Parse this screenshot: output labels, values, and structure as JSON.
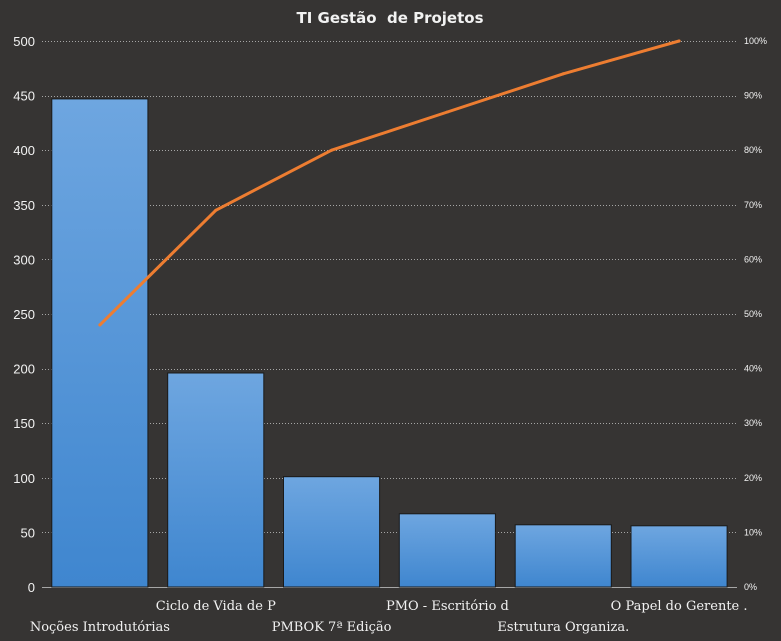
{
  "chart_data": {
    "type": "bar",
    "title": "TI Gestão  de Projetos",
    "categories": [
      "Noções Introdutórias",
      "Ciclo de Vida de P",
      "PMBOK 7ª Edição",
      "PMO - Escritório d",
      "Estrutura Organiza.",
      "O Papel do Gerente ."
    ],
    "series": [
      {
        "type": "bar",
        "axis": "left",
        "values": [
          447,
          196,
          101,
          67,
          57,
          56
        ]
      },
      {
        "type": "line",
        "axis": "right",
        "values": [
          48,
          69,
          80,
          87,
          94,
          100
        ]
      }
    ],
    "y_ticks": [
      "0",
      "50",
      "100",
      "150",
      "200",
      "250",
      "300",
      "350",
      "400",
      "450",
      "500"
    ],
    "y2_ticks": [
      "0%",
      "10%",
      "20%",
      "30%",
      "40%",
      "50%",
      "60%",
      "70%",
      "80%",
      "90%",
      "100%"
    ],
    "ylim": [
      0,
      500
    ],
    "y2lim": [
      0,
      100
    ],
    "grid": true,
    "legend": "none",
    "colors": {
      "background": "#363433",
      "bar_top": "#6ea6e0",
      "bar_bottom": "#3f86cf",
      "bar_border": "#1a1a1a",
      "line": "#ed7d31",
      "grid": "#a6a6a6",
      "text": "#f2f2f2"
    }
  }
}
